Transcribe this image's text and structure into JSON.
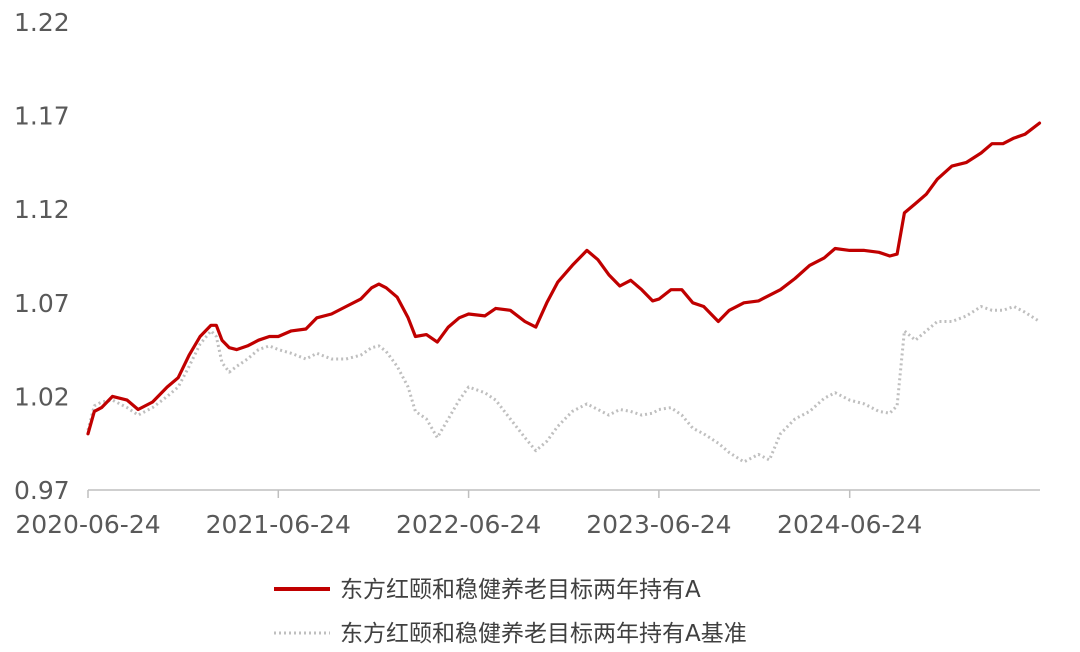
{
  "chart_data": {
    "type": "line",
    "title": "",
    "xlabel": "",
    "ylabel": "",
    "x_ticks": [
      "2020-06-24",
      "2021-06-24",
      "2022-06-24",
      "2023-06-24",
      "2024-06-24"
    ],
    "y_ticks": [
      "0.97",
      "1.02",
      "1.07",
      "1.12",
      "1.17",
      "1.22"
    ],
    "xlim": [
      "2020-06-24",
      "2025-06-24"
    ],
    "ylim": [
      0.97,
      1.22
    ],
    "grid": false,
    "legend_position": "bottom",
    "series": [
      {
        "name": "东方红颐和稳健养老目标两年持有A",
        "color": "#c00000",
        "style": "solid",
        "points": [
          [
            "2020-06-24",
            1.0
          ],
          [
            "2020-07-06",
            1.012
          ],
          [
            "2020-07-20",
            1.014
          ],
          [
            "2020-08-10",
            1.02
          ],
          [
            "2020-09-07",
            1.018
          ],
          [
            "2020-09-28",
            1.013
          ],
          [
            "2020-10-26",
            1.017
          ],
          [
            "2020-11-23",
            1.025
          ],
          [
            "2020-12-14",
            1.03
          ],
          [
            "2021-01-04",
            1.042
          ],
          [
            "2021-01-25",
            1.052
          ],
          [
            "2021-02-15",
            1.058
          ],
          [
            "2021-02-25",
            1.058
          ],
          [
            "2021-03-08",
            1.05
          ],
          [
            "2021-03-22",
            1.046
          ],
          [
            "2021-04-05",
            1.045
          ],
          [
            "2021-04-26",
            1.047
          ],
          [
            "2021-05-17",
            1.05
          ],
          [
            "2021-06-07",
            1.052
          ],
          [
            "2021-06-24",
            1.052
          ],
          [
            "2021-07-19",
            1.055
          ],
          [
            "2021-08-16",
            1.056
          ],
          [
            "2021-09-06",
            1.062
          ],
          [
            "2021-10-04",
            1.064
          ],
          [
            "2021-11-01",
            1.068
          ],
          [
            "2021-11-29",
            1.072
          ],
          [
            "2021-12-20",
            1.078
          ],
          [
            "2022-01-03",
            1.08
          ],
          [
            "2022-01-17",
            1.078
          ],
          [
            "2022-02-07",
            1.073
          ],
          [
            "2022-02-28",
            1.062
          ],
          [
            "2022-03-14",
            1.052
          ],
          [
            "2022-04-04",
            1.053
          ],
          [
            "2022-04-25",
            1.049
          ],
          [
            "2022-05-16",
            1.057
          ],
          [
            "2022-06-06",
            1.062
          ],
          [
            "2022-06-24",
            1.064
          ],
          [
            "2022-07-25",
            1.063
          ],
          [
            "2022-08-15",
            1.067
          ],
          [
            "2022-09-12",
            1.066
          ],
          [
            "2022-10-10",
            1.06
          ],
          [
            "2022-10-31",
            1.057
          ],
          [
            "2022-11-21",
            1.07
          ],
          [
            "2022-12-12",
            1.081
          ],
          [
            "2023-01-09",
            1.09
          ],
          [
            "2023-02-06",
            1.098
          ],
          [
            "2023-02-27",
            1.093
          ],
          [
            "2023-03-20",
            1.085
          ],
          [
            "2023-04-10",
            1.079
          ],
          [
            "2023-05-01",
            1.082
          ],
          [
            "2023-05-22",
            1.077
          ],
          [
            "2023-06-12",
            1.071
          ],
          [
            "2023-06-24",
            1.072
          ],
          [
            "2023-07-17",
            1.077
          ],
          [
            "2023-08-07",
            1.077
          ],
          [
            "2023-08-28",
            1.07
          ],
          [
            "2023-09-18",
            1.068
          ],
          [
            "2023-10-16",
            1.06
          ],
          [
            "2023-11-06",
            1.066
          ],
          [
            "2023-12-04",
            1.07
          ],
          [
            "2024-01-01",
            1.071
          ],
          [
            "2024-01-22",
            1.074
          ],
          [
            "2024-02-12",
            1.077
          ],
          [
            "2024-03-11",
            1.083
          ],
          [
            "2024-04-08",
            1.09
          ],
          [
            "2024-05-06",
            1.094
          ],
          [
            "2024-05-27",
            1.099
          ],
          [
            "2024-06-24",
            1.098
          ],
          [
            "2024-07-22",
            1.098
          ],
          [
            "2024-08-19",
            1.097
          ],
          [
            "2024-09-09",
            1.095
          ],
          [
            "2024-09-23",
            1.096
          ],
          [
            "2024-10-07",
            1.118
          ],
          [
            "2024-10-28",
            1.123
          ],
          [
            "2024-11-18",
            1.128
          ],
          [
            "2024-12-09",
            1.136
          ],
          [
            "2025-01-06",
            1.143
          ],
          [
            "2025-02-03",
            1.145
          ],
          [
            "2025-03-03",
            1.15
          ],
          [
            "2025-03-24",
            1.155
          ],
          [
            "2025-04-14",
            1.155
          ],
          [
            "2025-05-05",
            1.158
          ],
          [
            "2025-05-26",
            1.16
          ],
          [
            "2025-06-23",
            1.166
          ]
        ]
      },
      {
        "name": "东方红颐和稳健养老目标两年持有A基准",
        "color": "#bfbfbf",
        "style": "dotted",
        "points": [
          [
            "2020-06-24",
            1.002
          ],
          [
            "2020-07-06",
            1.015
          ],
          [
            "2020-07-20",
            1.017
          ],
          [
            "2020-08-10",
            1.018
          ],
          [
            "2020-09-07",
            1.014
          ],
          [
            "2020-09-28",
            1.01
          ],
          [
            "2020-10-26",
            1.014
          ],
          [
            "2020-11-23",
            1.02
          ],
          [
            "2020-12-14",
            1.025
          ],
          [
            "2021-01-04",
            1.036
          ],
          [
            "2021-01-25",
            1.048
          ],
          [
            "2021-02-15",
            1.055
          ],
          [
            "2021-02-25",
            1.052
          ],
          [
            "2021-03-08",
            1.038
          ],
          [
            "2021-03-22",
            1.033
          ],
          [
            "2021-04-05",
            1.036
          ],
          [
            "2021-04-26",
            1.04
          ],
          [
            "2021-05-17",
            1.045
          ],
          [
            "2021-06-07",
            1.047
          ],
          [
            "2021-06-24",
            1.045
          ],
          [
            "2021-07-19",
            1.043
          ],
          [
            "2021-08-16",
            1.04
          ],
          [
            "2021-09-06",
            1.043
          ],
          [
            "2021-10-04",
            1.04
          ],
          [
            "2021-11-01",
            1.04
          ],
          [
            "2021-11-29",
            1.042
          ],
          [
            "2021-12-20",
            1.046
          ],
          [
            "2022-01-03",
            1.047
          ],
          [
            "2022-01-17",
            1.044
          ],
          [
            "2022-02-07",
            1.036
          ],
          [
            "2022-02-28",
            1.025
          ],
          [
            "2022-03-14",
            1.012
          ],
          [
            "2022-04-04",
            1.008
          ],
          [
            "2022-04-25",
            0.998
          ],
          [
            "2022-05-16",
            1.008
          ],
          [
            "2022-06-06",
            1.018
          ],
          [
            "2022-06-24",
            1.025
          ],
          [
            "2022-07-25",
            1.022
          ],
          [
            "2022-08-15",
            1.018
          ],
          [
            "2022-09-12",
            1.008
          ],
          [
            "2022-10-10",
            0.998
          ],
          [
            "2022-10-31",
            0.991
          ],
          [
            "2022-11-21",
            0.996
          ],
          [
            "2022-12-12",
            1.004
          ],
          [
            "2023-01-09",
            1.012
          ],
          [
            "2023-02-06",
            1.016
          ],
          [
            "2023-02-27",
            1.013
          ],
          [
            "2023-03-20",
            1.01
          ],
          [
            "2023-04-10",
            1.013
          ],
          [
            "2023-05-01",
            1.012
          ],
          [
            "2023-05-22",
            1.01
          ],
          [
            "2023-06-12",
            1.011
          ],
          [
            "2023-06-24",
            1.013
          ],
          [
            "2023-07-17",
            1.014
          ],
          [
            "2023-08-07",
            1.01
          ],
          [
            "2023-08-28",
            1.003
          ],
          [
            "2023-09-18",
            1.0
          ],
          [
            "2023-10-16",
            0.995
          ],
          [
            "2023-11-06",
            0.99
          ],
          [
            "2023-12-04",
            0.985
          ],
          [
            "2024-01-01",
            0.989
          ],
          [
            "2024-01-22",
            0.986
          ],
          [
            "2024-02-12",
            1.0
          ],
          [
            "2024-03-11",
            1.008
          ],
          [
            "2024-04-08",
            1.012
          ],
          [
            "2024-05-06",
            1.019
          ],
          [
            "2024-05-27",
            1.022
          ],
          [
            "2024-06-24",
            1.018
          ],
          [
            "2024-07-22",
            1.016
          ],
          [
            "2024-08-19",
            1.012
          ],
          [
            "2024-09-09",
            1.011
          ],
          [
            "2024-09-23",
            1.015
          ],
          [
            "2024-10-07",
            1.055
          ],
          [
            "2024-10-28",
            1.05
          ],
          [
            "2024-11-18",
            1.055
          ],
          [
            "2024-12-09",
            1.06
          ],
          [
            "2025-01-06",
            1.06
          ],
          [
            "2025-02-03",
            1.063
          ],
          [
            "2025-03-03",
            1.068
          ],
          [
            "2025-03-24",
            1.066
          ],
          [
            "2025-04-14",
            1.066
          ],
          [
            "2025-05-05",
            1.068
          ],
          [
            "2025-05-26",
            1.065
          ],
          [
            "2025-06-23",
            1.06
          ]
        ]
      }
    ]
  }
}
